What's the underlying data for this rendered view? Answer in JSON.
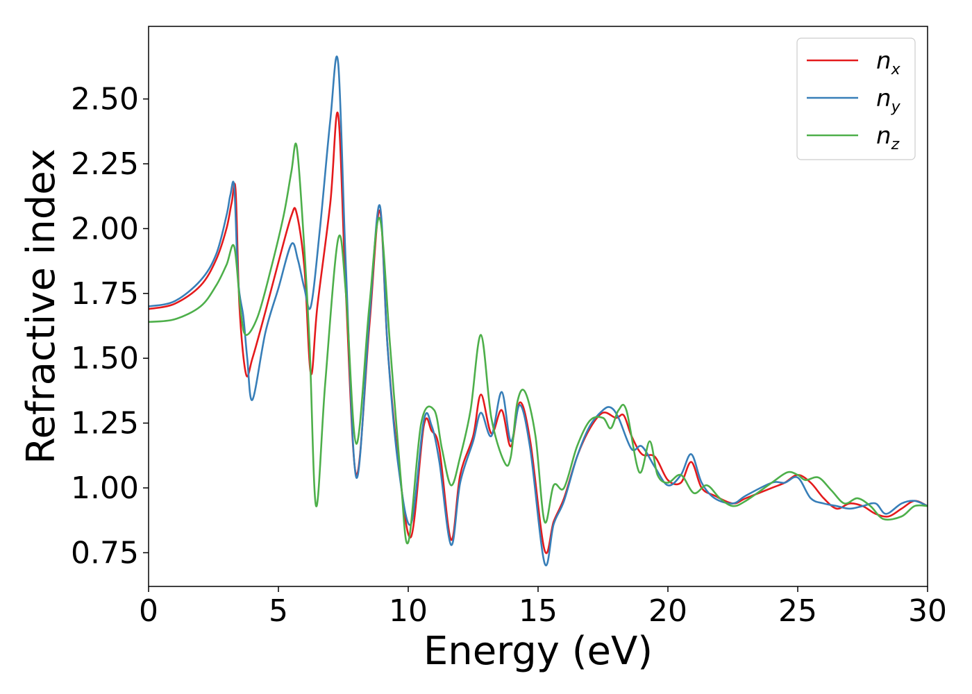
{
  "chart_data": {
    "type": "line",
    "title": "",
    "xlabel": "Energy (eV)",
    "ylabel": "Refractive index",
    "xlim": [
      0,
      30
    ],
    "ylim": [
      0.62,
      2.78
    ],
    "xticks": [
      0,
      5,
      10,
      15,
      20,
      25,
      30
    ],
    "xtick_labels": [
      "0",
      "5",
      "10",
      "15",
      "20",
      "25",
      "30"
    ],
    "yticks": [
      0.75,
      1.0,
      1.25,
      1.5,
      1.75,
      2.0,
      2.25,
      2.5
    ],
    "ytick_labels": [
      "0.75",
      "1.00",
      "1.25",
      "1.50",
      "1.75",
      "2.00",
      "2.25",
      "2.50"
    ],
    "grid": false,
    "legend_position": "top-right",
    "series": [
      {
        "name": "n_x",
        "legend_base": "n",
        "legend_sub": "x",
        "color": "#e41a1c",
        "x": [
          0,
          1,
          2,
          2.6,
          3.0,
          3.2,
          3.35,
          3.5,
          3.75,
          4.0,
          4.5,
          5.0,
          5.5,
          5.7,
          6.0,
          6.25,
          6.5,
          7.0,
          7.3,
          7.6,
          8.0,
          8.5,
          8.9,
          9.2,
          9.6,
          10.1,
          10.6,
          10.9,
          11.2,
          11.65,
          12.0,
          12.5,
          12.8,
          13.2,
          13.6,
          13.95,
          14.3,
          14.7,
          15.25,
          15.6,
          16.0,
          16.5,
          17.0,
          17.5,
          18.0,
          18.3,
          18.6,
          19.0,
          19.5,
          20.0,
          20.5,
          20.9,
          21.3,
          21.8,
          22.5,
          23.0,
          24.0,
          24.5,
          25.0,
          25.5,
          26.0,
          26.5,
          27.0,
          27.5,
          28.0,
          28.5,
          29.0,
          29.5,
          30.0
        ],
        "y": [
          1.69,
          1.71,
          1.78,
          1.88,
          2.0,
          2.1,
          2.15,
          1.7,
          1.44,
          1.5,
          1.68,
          1.87,
          2.05,
          2.06,
          1.85,
          1.44,
          1.7,
          2.1,
          2.44,
          1.75,
          1.05,
          1.62,
          2.07,
          1.55,
          1.12,
          0.81,
          1.24,
          1.22,
          1.15,
          0.8,
          1.05,
          1.2,
          1.36,
          1.21,
          1.3,
          1.16,
          1.33,
          1.18,
          0.76,
          0.87,
          0.96,
          1.12,
          1.23,
          1.29,
          1.27,
          1.28,
          1.2,
          1.13,
          1.12,
          1.03,
          1.02,
          1.1,
          1.0,
          0.97,
          0.94,
          0.96,
          1.0,
          1.02,
          1.05,
          1.02,
          0.96,
          0.92,
          0.94,
          0.93,
          0.9,
          0.89,
          0.92,
          0.95,
          0.93
        ]
      },
      {
        "name": "n_y",
        "legend_base": "n",
        "legend_sub": "y",
        "color": "#377eb8",
        "x": [
          0,
          1,
          2,
          2.6,
          3.0,
          3.15,
          3.3,
          3.45,
          3.65,
          3.8,
          4.0,
          4.5,
          5.0,
          5.5,
          5.75,
          6.0,
          6.25,
          6.6,
          7.0,
          7.3,
          7.6,
          8.0,
          8.5,
          8.9,
          9.2,
          9.6,
          10.1,
          10.6,
          10.9,
          11.2,
          11.65,
          12.0,
          12.5,
          12.8,
          13.2,
          13.6,
          13.95,
          14.3,
          14.7,
          15.25,
          15.6,
          16.0,
          16.5,
          17.0,
          17.5,
          17.8,
          18.1,
          18.6,
          19.0,
          19.5,
          20.0,
          20.5,
          20.9,
          21.3,
          21.8,
          22.5,
          23.0,
          24.0,
          24.5,
          25.0,
          25.5,
          26.0,
          26.5,
          27.0,
          27.5,
          28.0,
          28.4,
          29.0,
          29.5,
          30.0
        ],
        "y": [
          1.7,
          1.72,
          1.8,
          1.9,
          2.05,
          2.13,
          2.16,
          1.8,
          1.66,
          1.5,
          1.34,
          1.6,
          1.77,
          1.94,
          1.88,
          1.77,
          1.7,
          2.0,
          2.42,
          2.64,
          1.85,
          1.04,
          1.65,
          2.09,
          1.55,
          1.1,
          0.86,
          1.26,
          1.24,
          1.1,
          0.78,
          1.02,
          1.18,
          1.29,
          1.2,
          1.37,
          1.18,
          1.32,
          1.15,
          0.71,
          0.86,
          0.95,
          1.12,
          1.24,
          1.3,
          1.31,
          1.27,
          1.15,
          1.16,
          1.08,
          1.01,
          1.05,
          1.13,
          1.02,
          0.96,
          0.94,
          0.97,
          1.02,
          1.02,
          1.04,
          0.96,
          0.94,
          0.93,
          0.92,
          0.93,
          0.94,
          0.9,
          0.94,
          0.95,
          0.93
        ]
      },
      {
        "name": "n_z",
        "legend_base": "n",
        "legend_sub": "z",
        "color": "#4daf4a",
        "x": [
          0,
          1,
          2,
          2.6,
          3.0,
          3.3,
          3.55,
          3.75,
          4.2,
          4.7,
          5.2,
          5.5,
          5.7,
          5.95,
          6.2,
          6.45,
          6.8,
          7.3,
          7.6,
          8.0,
          8.5,
          8.9,
          9.3,
          9.7,
          10.0,
          10.5,
          11.0,
          11.3,
          11.65,
          12.0,
          12.4,
          12.8,
          13.2,
          13.7,
          13.95,
          14.2,
          14.5,
          14.9,
          15.25,
          15.6,
          16.0,
          16.5,
          17.0,
          17.5,
          17.8,
          18.1,
          18.4,
          18.9,
          19.3,
          19.6,
          20.0,
          20.5,
          21.0,
          21.5,
          22.0,
          22.5,
          23.0,
          24.0,
          24.6,
          25.0,
          25.3,
          25.8,
          26.3,
          26.8,
          27.3,
          27.8,
          28.3,
          29.0,
          29.5,
          30.0
        ],
        "y": [
          1.64,
          1.65,
          1.7,
          1.78,
          1.86,
          1.93,
          1.68,
          1.59,
          1.66,
          1.84,
          2.05,
          2.22,
          2.32,
          2.0,
          1.55,
          0.93,
          1.4,
          1.96,
          1.75,
          1.17,
          1.7,
          2.04,
          1.55,
          1.05,
          0.79,
          1.25,
          1.3,
          1.15,
          1.01,
          1.12,
          1.3,
          1.59,
          1.27,
          1.1,
          1.12,
          1.33,
          1.37,
          1.2,
          0.87,
          1.01,
          1.0,
          1.16,
          1.26,
          1.27,
          1.23,
          1.3,
          1.3,
          1.06,
          1.18,
          1.05,
          1.02,
          1.05,
          0.98,
          1.01,
          0.96,
          0.93,
          0.95,
          1.02,
          1.06,
          1.05,
          1.03,
          1.04,
          0.99,
          0.94,
          0.96,
          0.93,
          0.88,
          0.89,
          0.93,
          0.93
        ]
      }
    ]
  }
}
